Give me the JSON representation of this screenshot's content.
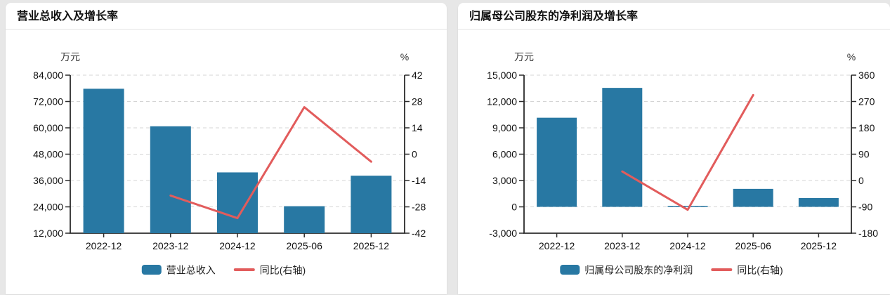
{
  "cards": [
    {
      "title": "营业总收入及增长率"
    },
    {
      "title": "归属母公司股东的净利润及增长率"
    }
  ],
  "colors": {
    "bar": "#2878a3",
    "line": "#e25c5c"
  },
  "chart_data": [
    {
      "type": "bar",
      "title": "营业总收入及增长率",
      "categories": [
        "2022-12",
        "2023-12",
        "2024-12",
        "2025-06",
        "2025-12"
      ],
      "series": [
        {
          "name": "营业总收入",
          "type": "bar",
          "axis": "left",
          "color": "#2878a3",
          "values": [
            77800,
            60700,
            39700,
            24300,
            38200
          ]
        },
        {
          "name": "同比(右轴)",
          "type": "line",
          "axis": "right",
          "color": "#e25c5c",
          "values": [
            null,
            -22,
            -34,
            25,
            -4
          ]
        }
      ],
      "left_axis": {
        "unit": "万元",
        "min": 12000,
        "max": 84000,
        "ticks": [
          "84,000",
          "72,000",
          "60,000",
          "48,000",
          "36,000",
          "24,000",
          "12,000"
        ]
      },
      "right_axis": {
        "unit": "%",
        "min": -42,
        "max": 42,
        "ticks": [
          "42",
          "28",
          "14",
          "0",
          "-14",
          "-28",
          "-42"
        ]
      },
      "legend": [
        "营业总收入",
        "同比(右轴)"
      ],
      "grid": true,
      "legend_position": "bottom-center"
    },
    {
      "type": "bar",
      "title": "归属母公司股东的净利润及增长率",
      "categories": [
        "2022-12",
        "2023-12",
        "2024-12",
        "2025-06",
        "2025-12"
      ],
      "series": [
        {
          "name": "归属母公司股东的净利润",
          "type": "bar",
          "axis": "left",
          "color": "#2878a3",
          "values": [
            10150,
            13550,
            40,
            2050,
            1000
          ]
        },
        {
          "name": "同比(右轴)",
          "type": "line",
          "axis": "right",
          "color": "#e25c5c",
          "values": [
            null,
            31,
            -100,
            292,
            null
          ]
        }
      ],
      "left_axis": {
        "unit": "万元",
        "min": -3000,
        "max": 15000,
        "ticks": [
          "15,000",
          "12,000",
          "9,000",
          "6,000",
          "3,000",
          "0",
          "-3,000"
        ]
      },
      "right_axis": {
        "unit": "%",
        "min": -180,
        "max": 360,
        "ticks": [
          "360",
          "270",
          "180",
          "90",
          "0",
          "-90",
          "-180"
        ]
      },
      "legend": [
        "归属母公司股东的净利润",
        "同比(右轴)"
      ],
      "grid": true,
      "legend_position": "bottom-center"
    }
  ]
}
